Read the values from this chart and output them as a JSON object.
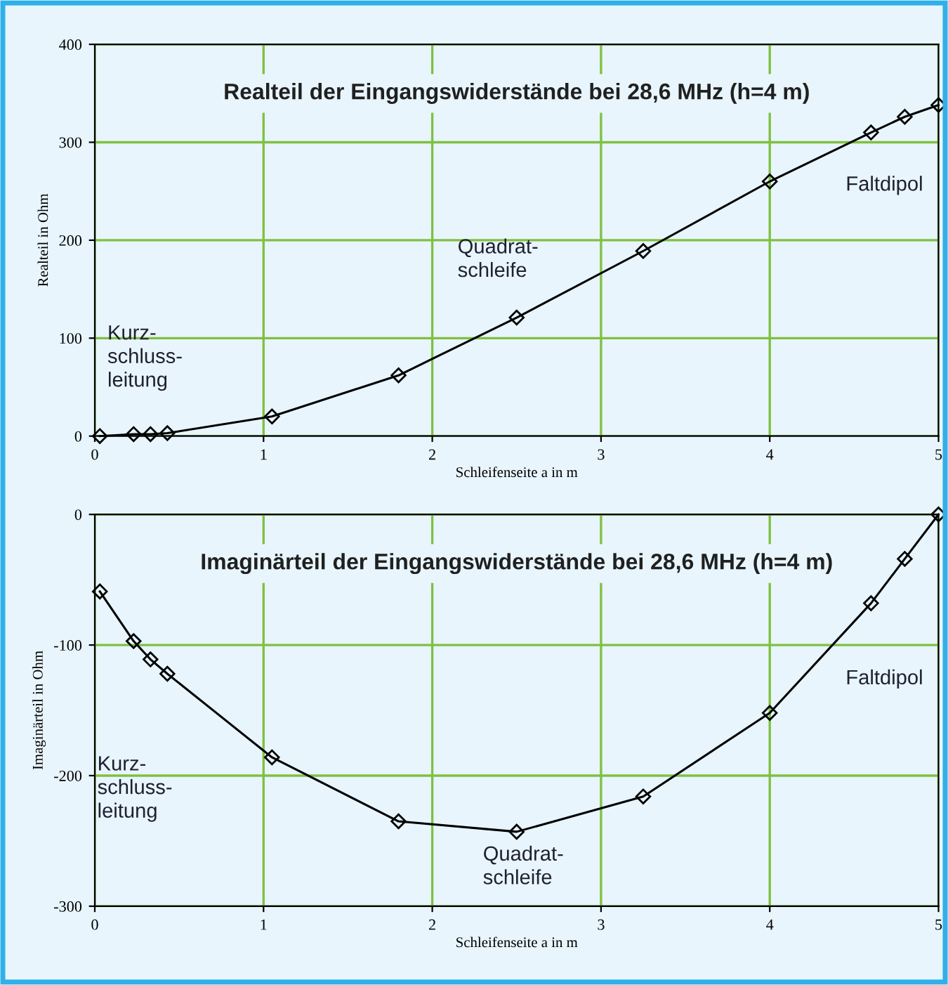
{
  "chart_data": [
    {
      "type": "line",
      "title": "Realteil der Eingangswiderstände bei 28,6 MHz (h=4 m)",
      "xlabel": "Schleifenseite a in m",
      "ylabel": "Realteil in Ohm",
      "x": [
        0.03,
        0.23,
        0.33,
        0.43,
        1.05,
        1.8,
        2.5,
        3.25,
        4.0,
        4.6,
        4.8,
        5.0
      ],
      "series": [
        {
          "color": "#000000",
          "values": [
            0,
            2,
            2,
            3,
            20,
            62,
            121,
            189,
            260,
            310,
            326,
            338
          ]
        }
      ],
      "xlim": [
        0,
        5
      ],
      "xticks": [
        0,
        1,
        2,
        3,
        4,
        5
      ],
      "ylim": [
        0,
        400
      ],
      "yticks": [
        0,
        100,
        200,
        300,
        400
      ],
      "grid": true,
      "marker": "diamond",
      "line_style": "solid",
      "annotations": [
        "Kurz-\nschluss-\nleitung",
        "Quadrat-\nschleife",
        "Faltdipol"
      ]
    },
    {
      "type": "line",
      "title": "Imaginärteil der Eingangswiderstände bei 28,6 MHz (h=4 m)",
      "xlabel": "Schleifenseite a in m",
      "ylabel": "Imaginärteil in Ohm",
      "x": [
        0.03,
        0.23,
        0.33,
        0.43,
        1.05,
        1.8,
        2.5,
        3.25,
        4.0,
        4.6,
        4.8,
        5.0
      ],
      "series": [
        {
          "color": "#000000",
          "values": [
            -59,
            -97,
            -111,
            -122,
            -186,
            -235,
            -243,
            -216,
            -152,
            -68,
            -34,
            0
          ]
        }
      ],
      "xlim": [
        0,
        5
      ],
      "xticks": [
        0,
        1,
        2,
        3,
        4,
        5
      ],
      "ylim": [
        -300,
        0
      ],
      "yticks": [
        -300,
        -200,
        -100,
        0
      ],
      "grid": true,
      "marker": "diamond",
      "line_style": "solid",
      "annotations": [
        "Kurz-\nschluss-\nleitung",
        "Quadrat-\nschleife",
        "Faltdipol"
      ]
    }
  ]
}
